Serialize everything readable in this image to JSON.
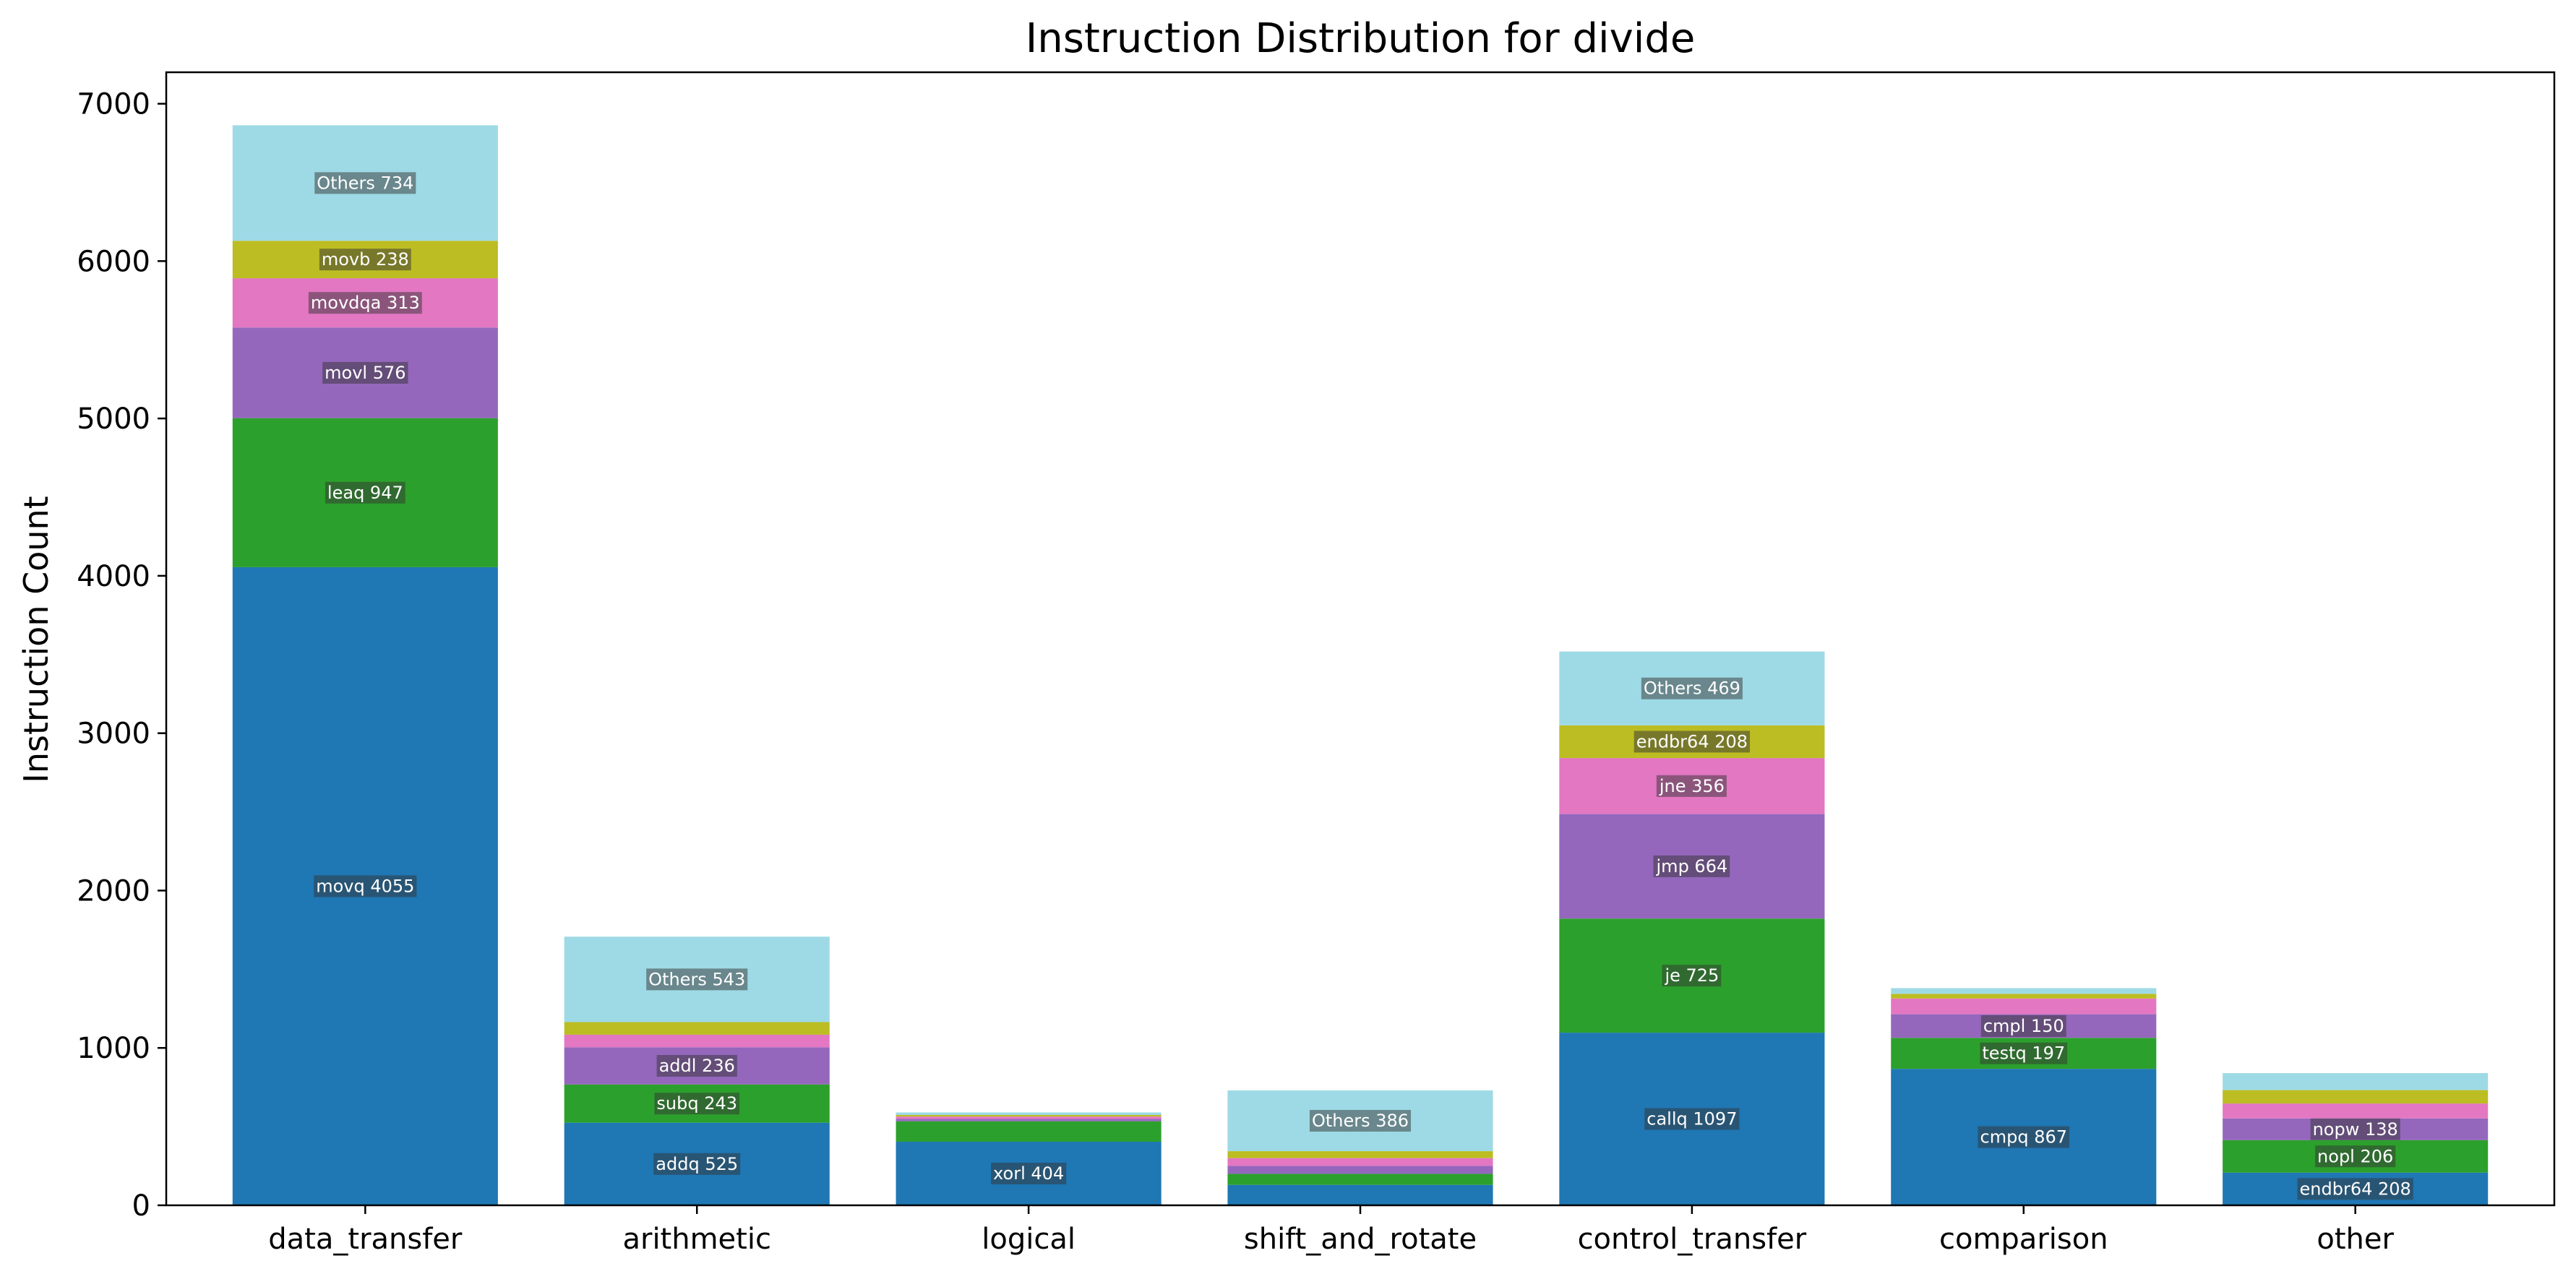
{
  "chart_data": {
    "type": "bar",
    "stacked": true,
    "title": "Instruction Distribution for divide",
    "xlabel": "",
    "ylabel": "Instruction Count",
    "ylim": [
      0,
      7200
    ],
    "yticks": [
      0,
      1000,
      2000,
      3000,
      4000,
      5000,
      6000,
      7000
    ],
    "grid": false,
    "legend": "none",
    "palette": [
      "#1f77b4",
      "#2ca02c",
      "#9467bd",
      "#e377c2",
      "#bcbd22",
      "#9edae5"
    ],
    "categories": [
      "data_transfer",
      "arithmetic",
      "logical",
      "shift_and_rotate",
      "control_transfer",
      "comparison",
      "other"
    ],
    "bars": [
      {
        "category": "data_transfer",
        "segments": [
          {
            "name": "movq",
            "value": 4055,
            "label": "movq 4055"
          },
          {
            "name": "leaq",
            "value": 947,
            "label": "leaq 947"
          },
          {
            "name": "movl",
            "value": 576,
            "label": "movl 576"
          },
          {
            "name": "movdqa",
            "value": 313,
            "label": "movdqa 313"
          },
          {
            "name": "movb",
            "value": 238,
            "label": "movb 238"
          },
          {
            "name": "Others",
            "value": 734,
            "label": "Others 734"
          }
        ]
      },
      {
        "category": "arithmetic",
        "segments": [
          {
            "name": "addq",
            "value": 525,
            "label": "addq 525"
          },
          {
            "name": "subq",
            "value": 243,
            "label": "subq 243"
          },
          {
            "name": "addl",
            "value": 236,
            "label": "addl 236"
          },
          {
            "name": "",
            "value": 80,
            "label": ""
          },
          {
            "name": "",
            "value": 80,
            "label": ""
          },
          {
            "name": "Others",
            "value": 543,
            "label": "Others 543"
          }
        ]
      },
      {
        "category": "logical",
        "segments": [
          {
            "name": "xorl",
            "value": 404,
            "label": "xorl 404"
          },
          {
            "name": "",
            "value": 130,
            "label": ""
          },
          {
            "name": "",
            "value": 15,
            "label": ""
          },
          {
            "name": "",
            "value": 15,
            "label": ""
          },
          {
            "name": "",
            "value": 10,
            "label": ""
          },
          {
            "name": "",
            "value": 16,
            "label": ""
          }
        ]
      },
      {
        "category": "shift_and_rotate",
        "segments": [
          {
            "name": "",
            "value": 130,
            "label": ""
          },
          {
            "name": "",
            "value": 70,
            "label": ""
          },
          {
            "name": "",
            "value": 50,
            "label": ""
          },
          {
            "name": "",
            "value": 50,
            "label": ""
          },
          {
            "name": "",
            "value": 44,
            "label": ""
          },
          {
            "name": "Others",
            "value": 386,
            "label": "Others 386"
          }
        ]
      },
      {
        "category": "control_transfer",
        "segments": [
          {
            "name": "callq",
            "value": 1097,
            "label": "callq 1097"
          },
          {
            "name": "je",
            "value": 725,
            "label": "je 725"
          },
          {
            "name": "jmp",
            "value": 664,
            "label": "jmp 664"
          },
          {
            "name": "jne",
            "value": 356,
            "label": "jne 356"
          },
          {
            "name": "endbr64",
            "value": 208,
            "label": "endbr64 208"
          },
          {
            "name": "Others",
            "value": 469,
            "label": "Others 469"
          }
        ]
      },
      {
        "category": "comparison",
        "segments": [
          {
            "name": "cmpq",
            "value": 867,
            "label": "cmpq 867"
          },
          {
            "name": "testq",
            "value": 197,
            "label": "testq 197"
          },
          {
            "name": "cmpl",
            "value": 150,
            "label": "cmpl 150"
          },
          {
            "name": "",
            "value": 100,
            "label": ""
          },
          {
            "name": "",
            "value": 30,
            "label": ""
          },
          {
            "name": "",
            "value": 36,
            "label": ""
          }
        ]
      },
      {
        "category": "other",
        "segments": [
          {
            "name": "endbr64",
            "value": 208,
            "label": "endbr64 208"
          },
          {
            "name": "nopl",
            "value": 206,
            "label": "nopl 206"
          },
          {
            "name": "nopw",
            "value": 138,
            "label": "nopw 138"
          },
          {
            "name": "",
            "value": 95,
            "label": ""
          },
          {
            "name": "",
            "value": 85,
            "label": ""
          },
          {
            "name": "",
            "value": 108,
            "label": ""
          }
        ]
      }
    ]
  }
}
